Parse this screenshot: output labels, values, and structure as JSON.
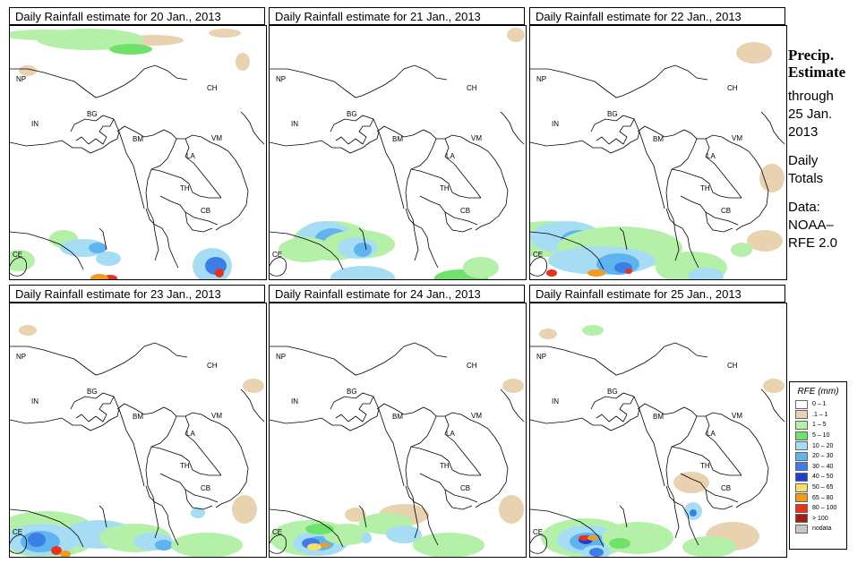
{
  "panels": [
    {
      "title": "Daily Rainfall estimate for  20 Jan., 2013",
      "pattern": "p20"
    },
    {
      "title": "Daily Rainfall estimate for  21 Jan., 2013",
      "pattern": "p21"
    },
    {
      "title": "Daily Rainfall estimate for  22 Jan., 2013",
      "pattern": "p22"
    },
    {
      "title": "Daily Rainfall estimate for  23 Jan., 2013",
      "pattern": "p23"
    },
    {
      "title": "Daily Rainfall estimate for  24 Jan., 2013",
      "pattern": "p24"
    },
    {
      "title": "Daily Rainfall estimate for  25 Jan., 2013",
      "pattern": "p25"
    }
  ],
  "country_labels": [
    "NP",
    "CH",
    "IN",
    "BG",
    "BM",
    "VM",
    "LA",
    "TH",
    "CB",
    "CE"
  ],
  "sidebar": {
    "heading1": "Precip.",
    "heading2": "Estimate",
    "line1": "through",
    "line2": "25 Jan.",
    "line3": "2013",
    "line4": "Daily",
    "line5": "Totals",
    "line6": "Data:",
    "line7": "NOAA–",
    "line8": "RFE 2.0"
  },
  "legend": {
    "title": "RFE (mm)",
    "items": [
      {
        "label": "0 – 1",
        "color": "#ffffff"
      },
      {
        "label": ".1 – 1",
        "color": "#e8d2b0"
      },
      {
        "label": "1 – 5",
        "color": "#b4f0a8"
      },
      {
        "label": "5 – 10",
        "color": "#6fe26b"
      },
      {
        "label": "10 – 20",
        "color": "#a6ddf5"
      },
      {
        "label": "20 – 30",
        "color": "#5fb3ee"
      },
      {
        "label": "30 – 40",
        "color": "#3b7fe6"
      },
      {
        "label": "40 – 50",
        "color": "#1f3fd0"
      },
      {
        "label": "50 – 65",
        "color": "#f7e068"
      },
      {
        "label": "65 – 80",
        "color": "#f29b1e"
      },
      {
        "label": "80 – 100",
        "color": "#e8331c"
      },
      {
        "label": "> 100",
        "color": "#a61c10"
      },
      {
        "label": "nodata",
        "color": "#c8c8c8"
      }
    ]
  }
}
